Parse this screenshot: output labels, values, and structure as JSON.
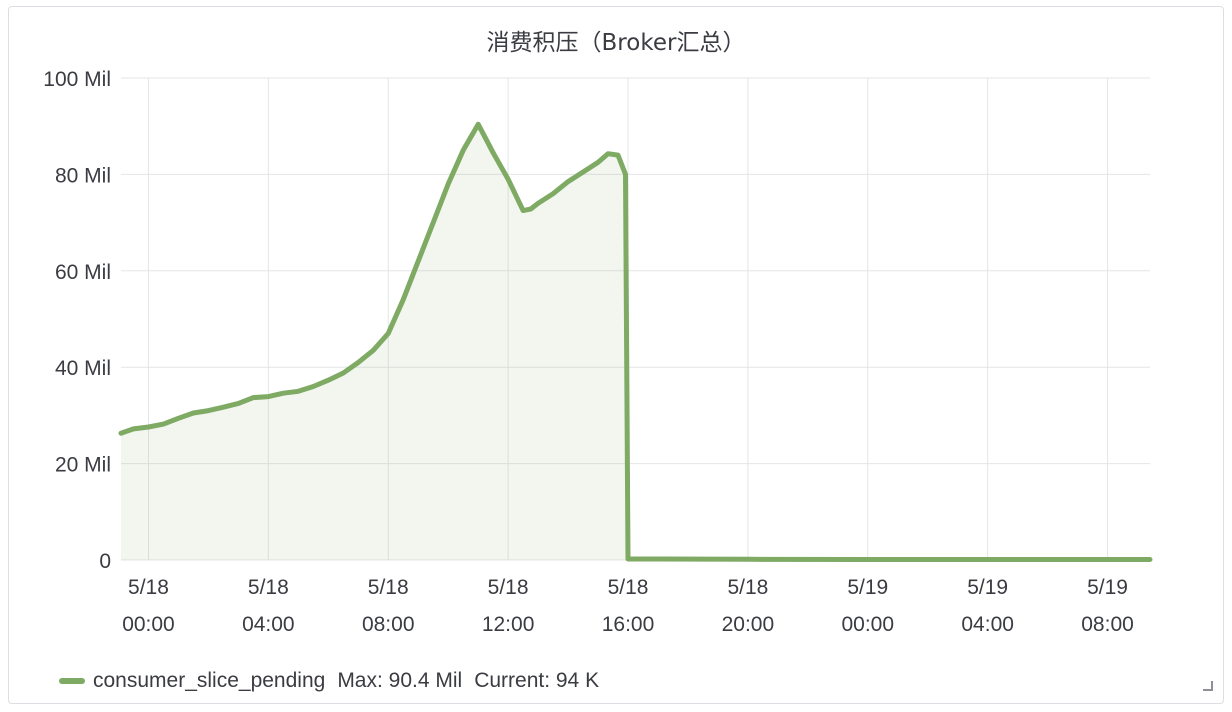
{
  "panel": {
    "title": "消费积压（Broker汇总）"
  },
  "legend": {
    "series_name": "consumer_slice_pending",
    "max_text": "Max: 90.4 Mil",
    "current_text": "Current: 94 K",
    "color": "#7eaa64"
  },
  "chart_data": {
    "type": "area",
    "title": "消费积压（Broker汇总）",
    "xlabel": "",
    "ylabel": "",
    "ylim": [
      0,
      100
    ],
    "y_unit": "Mil",
    "y_ticks": [
      {
        "value": 0,
        "label": "0"
      },
      {
        "value": 20,
        "label": "20 Mil"
      },
      {
        "value": 40,
        "label": "40 Mil"
      },
      {
        "value": 60,
        "label": "60 Mil"
      },
      {
        "value": 80,
        "label": "80 Mil"
      },
      {
        "value": 100,
        "label": "100 Mil"
      }
    ],
    "x_range": [
      "2023-05-17T23:05",
      "2023-05-19T09:25"
    ],
    "x_ticks": [
      {
        "value": "2023-05-18T00:00",
        "line1": "5/18",
        "line2": "00:00"
      },
      {
        "value": "2023-05-18T04:00",
        "line1": "5/18",
        "line2": "04:00"
      },
      {
        "value": "2023-05-18T08:00",
        "line1": "5/18",
        "line2": "08:00"
      },
      {
        "value": "2023-05-18T12:00",
        "line1": "5/18",
        "line2": "12:00"
      },
      {
        "value": "2023-05-18T16:00",
        "line1": "5/18",
        "line2": "16:00"
      },
      {
        "value": "2023-05-18T20:00",
        "line1": "5/18",
        "line2": "20:00"
      },
      {
        "value": "2023-05-19T00:00",
        "line1": "5/19",
        "line2": "00:00"
      },
      {
        "value": "2023-05-19T04:00",
        "line1": "5/19",
        "line2": "04:00"
      },
      {
        "value": "2023-05-19T08:00",
        "line1": "5/19",
        "line2": "08:00"
      }
    ],
    "grid": true,
    "legend_position": "bottom-left",
    "series": [
      {
        "name": "consumer_slice_pending",
        "color": "#7eaa64",
        "x": [
          "2023-05-17T23:05",
          "2023-05-17T23:30",
          "2023-05-18T00:00",
          "2023-05-18T00:30",
          "2023-05-18T01:00",
          "2023-05-18T01:30",
          "2023-05-18T02:00",
          "2023-05-18T02:30",
          "2023-05-18T03:00",
          "2023-05-18T03:30",
          "2023-05-18T04:00",
          "2023-05-18T04:30",
          "2023-05-18T05:00",
          "2023-05-18T05:30",
          "2023-05-18T06:00",
          "2023-05-18T06:30",
          "2023-05-18T07:00",
          "2023-05-18T07:30",
          "2023-05-18T08:00",
          "2023-05-18T08:30",
          "2023-05-18T09:00",
          "2023-05-18T09:30",
          "2023-05-18T10:00",
          "2023-05-18T10:30",
          "2023-05-18T11:00",
          "2023-05-18T11:15",
          "2023-05-18T11:30",
          "2023-05-18T12:00",
          "2023-05-18T12:30",
          "2023-05-18T12:45",
          "2023-05-18T13:00",
          "2023-05-18T13:30",
          "2023-05-18T14:00",
          "2023-05-18T14:30",
          "2023-05-18T15:00",
          "2023-05-18T15:20",
          "2023-05-18T15:40",
          "2023-05-18T15:55",
          "2023-05-18T16:00",
          "2023-05-18T17:00",
          "2023-05-18T20:00",
          "2023-05-19T00:00",
          "2023-05-19T04:00",
          "2023-05-19T08:00",
          "2023-05-19T09:25"
        ],
        "values": [
          26.3,
          27.2,
          27.6,
          28.2,
          29.4,
          30.5,
          31.0,
          31.7,
          32.5,
          33.7,
          33.9,
          34.6,
          35.0,
          36.0,
          37.3,
          38.8,
          41.0,
          43.5,
          47.0,
          54.0,
          62.0,
          70.0,
          78.0,
          85.0,
          90.4,
          87.5,
          84.5,
          79.0,
          72.5,
          72.8,
          74.0,
          76.0,
          78.5,
          80.5,
          82.5,
          84.3,
          84.0,
          80.0,
          0.2,
          0.2,
          0.15,
          0.1,
          0.1,
          0.1,
          0.094
        ]
      }
    ]
  }
}
